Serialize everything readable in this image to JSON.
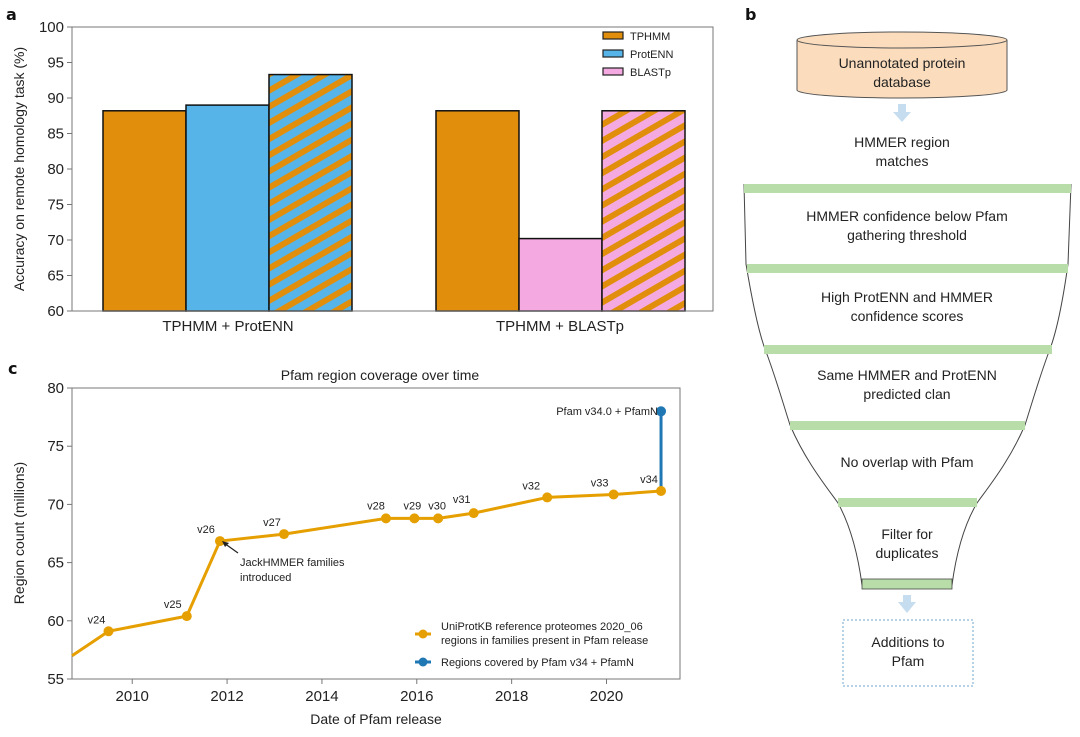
{
  "panels": {
    "a": "a",
    "b": "b",
    "c": "c"
  },
  "chart_data": [
    {
      "type": "bar",
      "panel": "a",
      "title": "",
      "ylabel": "Accuracy on remote homology task (%)",
      "xlabel": "",
      "ylim": [
        60,
        100
      ],
      "yticks": [
        60,
        65,
        70,
        75,
        80,
        85,
        90,
        95,
        100
      ],
      "categories": [
        "TPHMM + ProtENN",
        "TPHMM + BLASTp"
      ],
      "groups": [
        {
          "label": "TPHMM + ProtENN",
          "bars": [
            {
              "name": "TPHMM",
              "value": 88.2,
              "fill": "#E08E0B",
              "hatch": null
            },
            {
              "name": "ProtENN",
              "value": 89.0,
              "fill": "#56B4E9",
              "hatch": null
            },
            {
              "name": "TPHMM + ProtENN combined",
              "value": 93.3,
              "fill": "#56B4E9",
              "hatch": "#E08E0B"
            }
          ]
        },
        {
          "label": "TPHMM + BLASTp",
          "bars": [
            {
              "name": "TPHMM",
              "value": 88.2,
              "fill": "#E08E0B",
              "hatch": null
            },
            {
              "name": "BLASTp",
              "value": 70.2,
              "fill": "#F5A9E1",
              "hatch": null
            },
            {
              "name": "TPHMM + BLASTp combined",
              "value": 88.2,
              "fill": "#F5A9E1",
              "hatch": "#E08E0B"
            }
          ]
        }
      ],
      "legend": {
        "position": "top-right",
        "entries": [
          {
            "label": "TPHMM",
            "color": "#E08E0B"
          },
          {
            "label": "ProtENN",
            "color": "#56B4E9"
          },
          {
            "label": "BLASTp",
            "color": "#F5A9E1"
          }
        ]
      }
    },
    {
      "type": "line",
      "panel": "c",
      "title": "Pfam region coverage over time",
      "xlabel": "Date of Pfam release",
      "ylabel": "Region count (millions)",
      "xlim": [
        2008.73,
        2021.55
      ],
      "ylim": [
        55,
        80
      ],
      "xticks": [
        2010,
        2012,
        2014,
        2016,
        2018,
        2020
      ],
      "yticks": [
        55,
        60,
        65,
        70,
        75,
        80
      ],
      "series": [
        {
          "name": "UniProtKB reference proteomes 2020_06 regions in families present in Pfam release",
          "color": "#E69F00",
          "line_start": {
            "x": 2008.73,
            "y": 57.0
          },
          "points": [
            {
              "label": "v24",
              "x": 2009.5,
              "y": 59.1
            },
            {
              "label": "v25",
              "x": 2011.15,
              "y": 60.4
            },
            {
              "label": "v26",
              "x": 2011.85,
              "y": 66.85
            },
            {
              "label": "v27",
              "x": 2013.2,
              "y": 67.45
            },
            {
              "label": "v28",
              "x": 2015.35,
              "y": 68.8
            },
            {
              "label": "v29",
              "x": 2015.95,
              "y": 68.8
            },
            {
              "label": "v30",
              "x": 2016.45,
              "y": 68.8
            },
            {
              "label": "v31",
              "x": 2017.2,
              "y": 69.25
            },
            {
              "label": "v32",
              "x": 2018.75,
              "y": 70.6
            },
            {
              "label": "v33",
              "x": 2020.15,
              "y": 70.85
            },
            {
              "label": "v34",
              "x": 2021.15,
              "y": 71.15
            }
          ]
        },
        {
          "name": "Regions covered by Pfam v34 + PfamN",
          "color": "#1F77B4",
          "points": [
            {
              "label": "",
              "x": 2021.15,
              "y": 71.15
            },
            {
              "label": "Pfam v34.0 + PfamN",
              "x": 2021.15,
              "y": 78.0
            }
          ]
        }
      ],
      "annotations": [
        {
          "text_line1": "JackHMMER families",
          "text_line2": "introduced",
          "target": "v26"
        }
      ],
      "legend": {
        "position": "bottom-right",
        "entries": [
          {
            "line1": "UniProtKB reference proteomes 2020_06",
            "line2": "regions in families present in Pfam release",
            "color": "#E69F00"
          },
          {
            "line1": "Regions covered by Pfam v34 + PfamN",
            "line2": "",
            "color": "#1F77B4"
          }
        ]
      }
    }
  ],
  "flowchart": {
    "database": {
      "line1": "Unannotated protein",
      "line2": "database",
      "fill": "#FBDDBE"
    },
    "input_label": {
      "line1": "HMMER region",
      "line2": "matches"
    },
    "stages": [
      {
        "line1": "HMMER confidence below Pfam",
        "line2": "gathering threshold"
      },
      {
        "line1": "High ProtENN and HMMER",
        "line2": "confidence scores"
      },
      {
        "line1": "Same HMMER and ProtENN",
        "line2": "predicted clan"
      },
      {
        "line1": "No overlap with Pfam",
        "line2": ""
      },
      {
        "line1": "Filter for",
        "line2": "duplicates"
      }
    ],
    "output": {
      "line1": "Additions to",
      "line2": "Pfam"
    },
    "band_color": "#B9DDA8",
    "arrow_color": "#C6DDF0"
  }
}
